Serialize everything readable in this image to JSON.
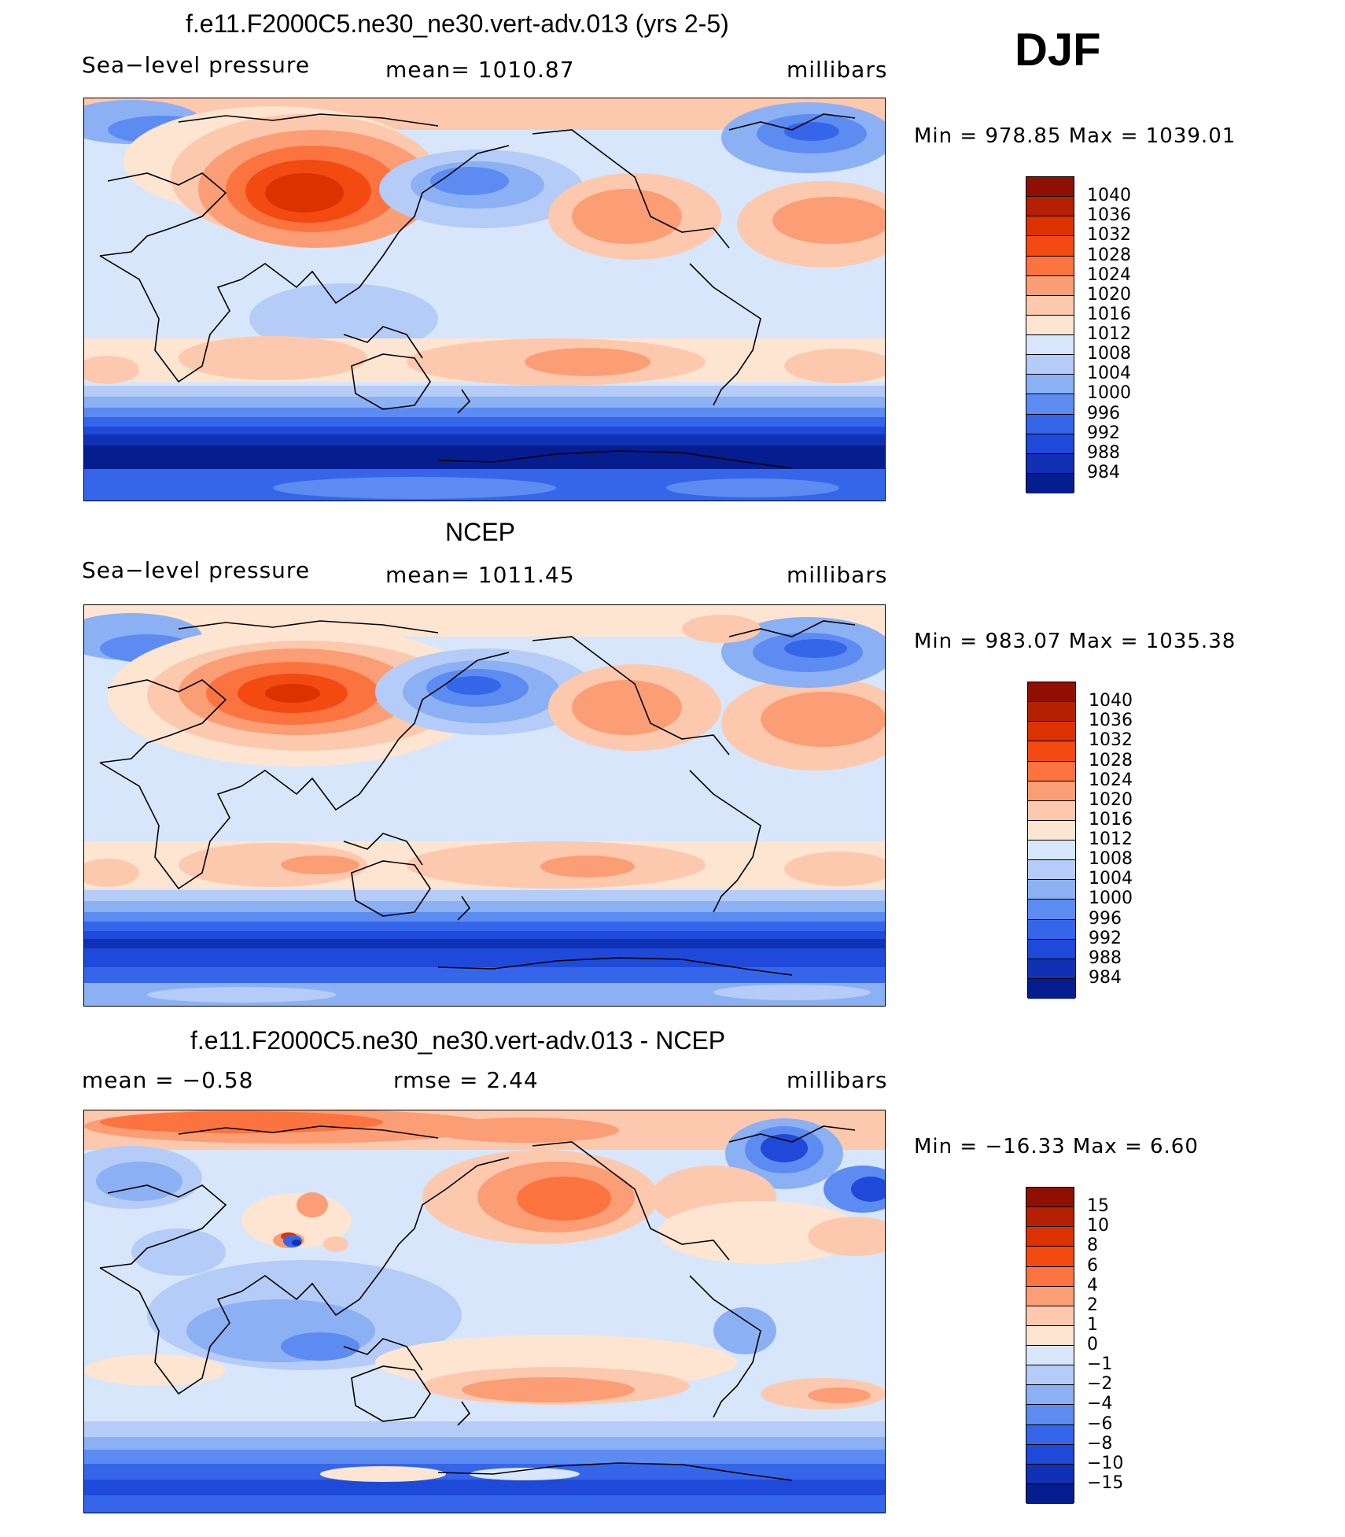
{
  "season": "DJF",
  "units": "millibars",
  "palette": {
    "slp": [
      "#8f0f00",
      "#b52100",
      "#dc3200",
      "#f34a12",
      "#fb7440",
      "#fb9e76",
      "#fdc9ae",
      "#fde5d2",
      "#d7e6fa",
      "#b4ccf7",
      "#8cb0f4",
      "#5c8cf1",
      "#3566ea",
      "#1f49d8",
      "#1131b4",
      "#061d8f"
    ],
    "diff": [
      "#8f0f00",
      "#b52100",
      "#dc3200",
      "#f34a12",
      "#fb7440",
      "#fb9e76",
      "#fdc9ae",
      "#fde5d2",
      "#d7e6fa",
      "#b4ccf7",
      "#8cb0f4",
      "#5c8cf1",
      "#3566ea",
      "#1f49d8",
      "#1131b4",
      "#061d8f"
    ]
  },
  "panels": [
    {
      "id": "model",
      "title": "f.e11.F2000C5.ne30_ne30.vert-adv.013 (yrs 2-5)",
      "left_label": "Sea−level pressure",
      "mid_label": "mean=  1010.87",
      "right_label": "millibars",
      "minmax": "Min  =  978.85  Max  =  1039.01",
      "field": {
        "min": 978.85,
        "max": 1039.01,
        "mean": 1010.87
      },
      "colorbar_levels": [
        "1040",
        "1036",
        "1032",
        "1028",
        "1024",
        "1020",
        "1016",
        "1012",
        "1008",
        "1004",
        "1000",
        "996",
        "992",
        "988",
        "984"
      ]
    },
    {
      "id": "obs",
      "title": "NCEP",
      "left_label": "Sea−level pressure",
      "mid_label": "mean=  1011.45",
      "right_label": "millibars",
      "minmax": "Min  =  983.07  Max  =  1035.38",
      "field": {
        "min": 983.07,
        "max": 1035.38,
        "mean": 1011.45
      },
      "colorbar_levels": [
        "1040",
        "1036",
        "1032",
        "1028",
        "1024",
        "1020",
        "1016",
        "1012",
        "1008",
        "1004",
        "1000",
        "996",
        "992",
        "988",
        "984"
      ]
    },
    {
      "id": "diff",
      "title": "f.e11.F2000C5.ne30_ne30.vert-adv.013 - NCEP",
      "left_label": "mean  =    −0.58",
      "mid_label": "rmse  =     2.44",
      "right_label": "millibars",
      "minmax": "Min  =  −16.33  Max  =       6.60",
      "field": {
        "min": -16.33,
        "max": 6.6,
        "mean": -0.58,
        "rmse": 2.44
      },
      "colorbar_levels": [
        "15",
        "10",
        "8",
        "6",
        "4",
        "2",
        "1",
        "0",
        "−1",
        "−2",
        "−4",
        "−6",
        "−8",
        "−10",
        "−15"
      ]
    }
  ]
}
